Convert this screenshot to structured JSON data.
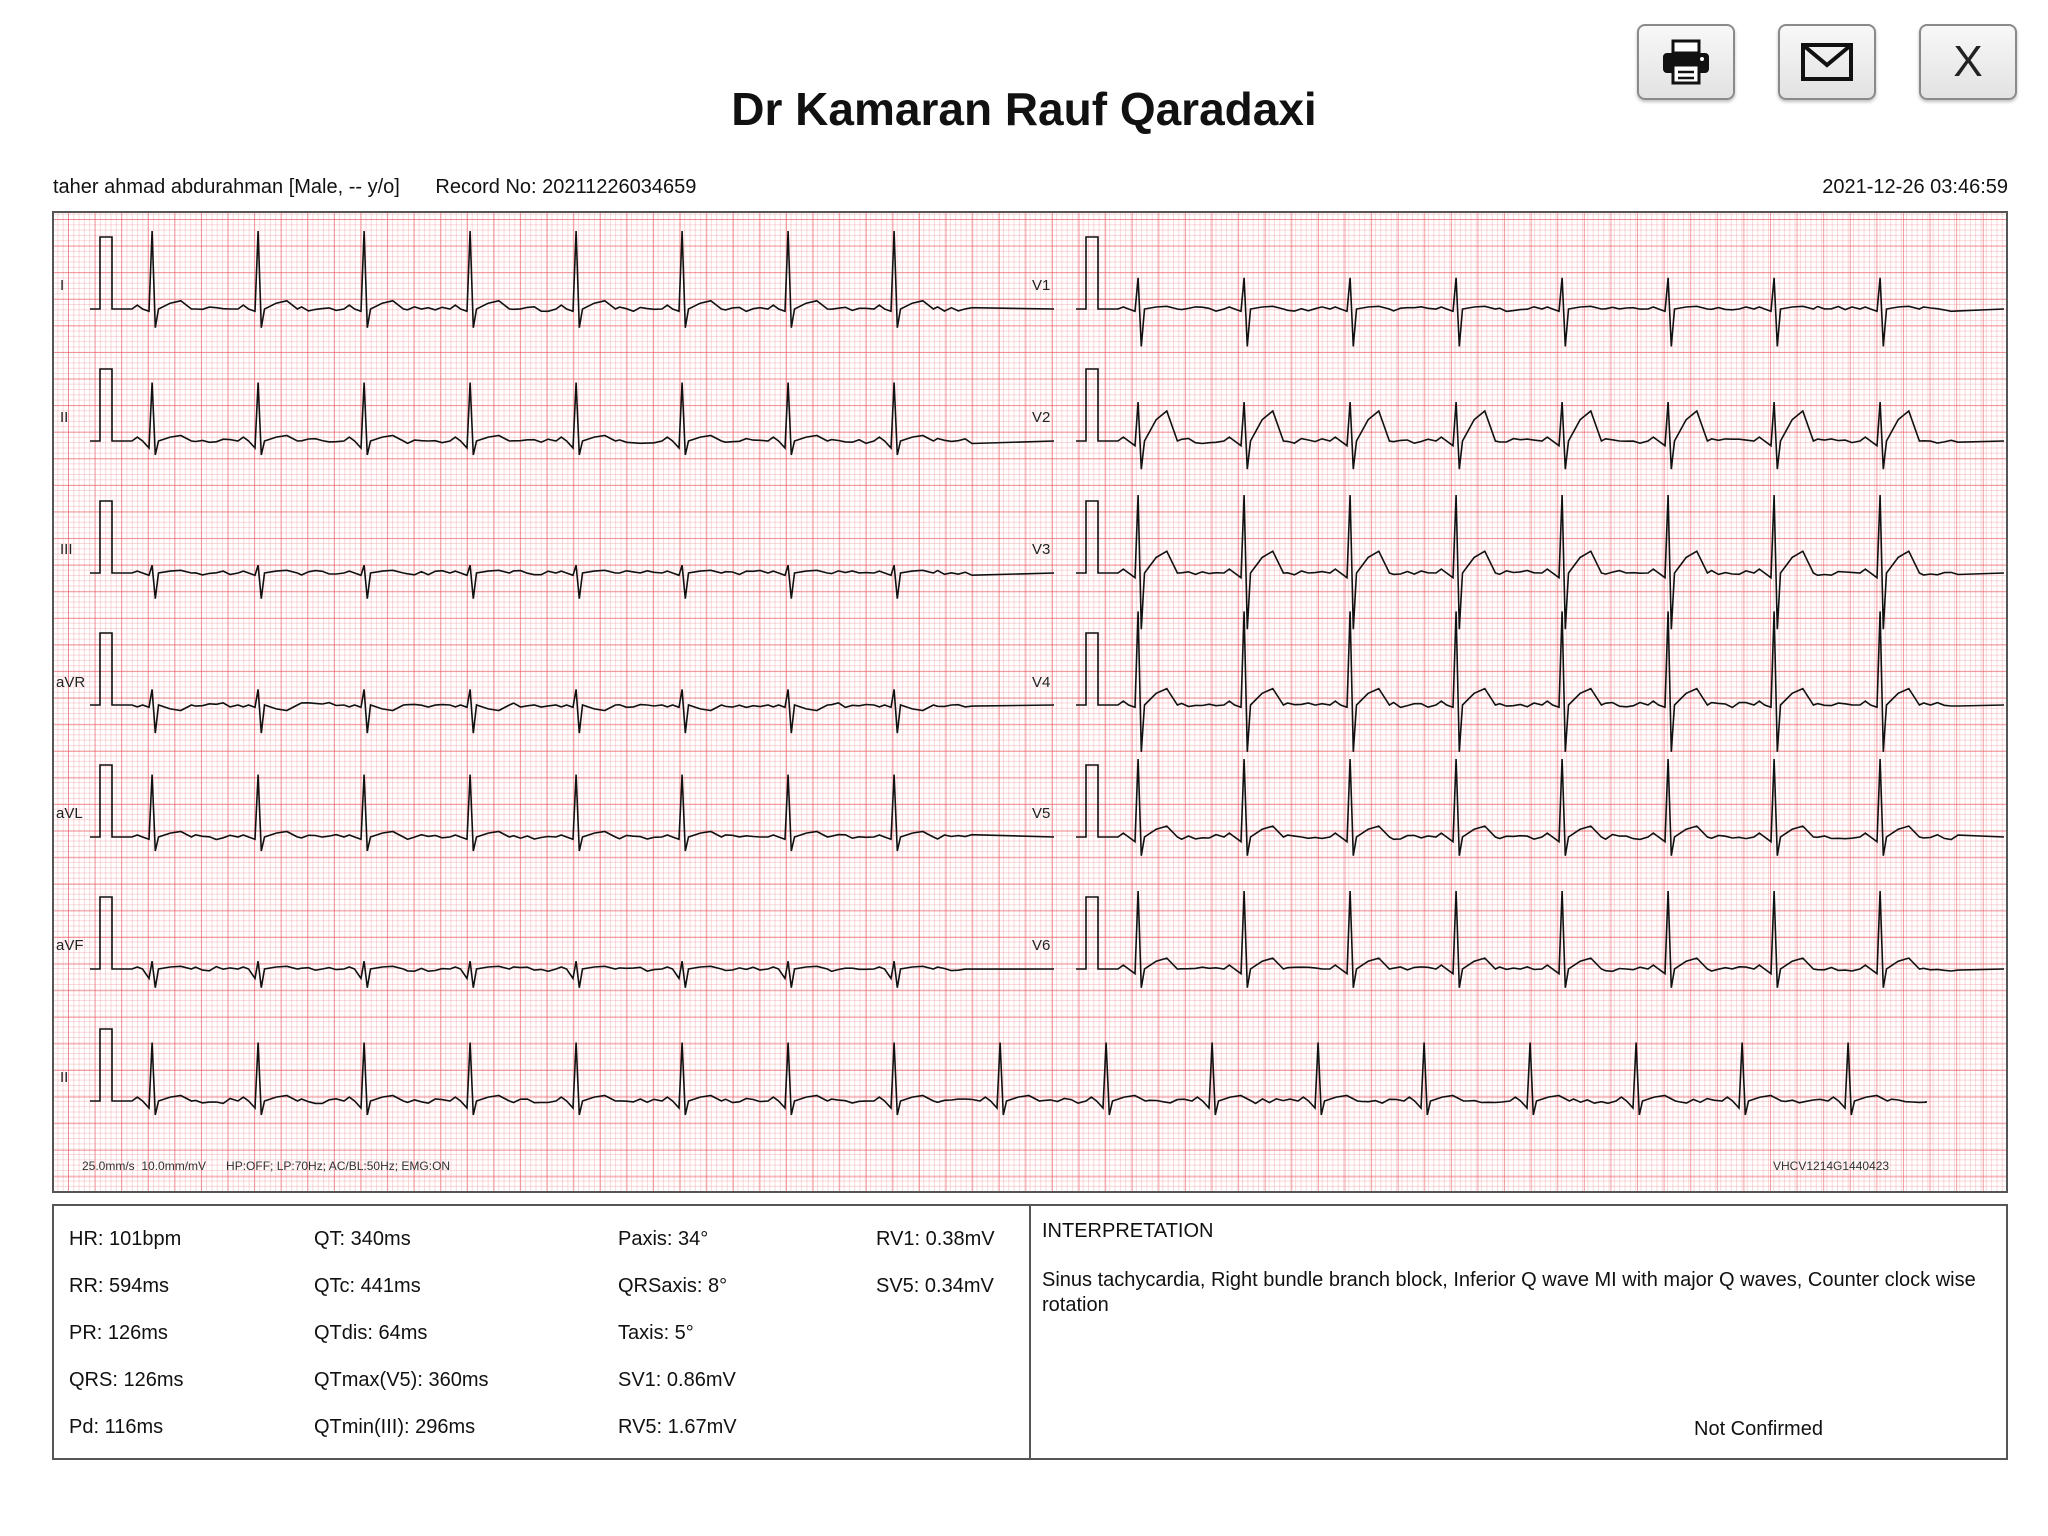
{
  "header": {
    "title": "Dr Kamaran Rauf Qaradaxi",
    "patient": "taher ahmad abdurahman [Male, -- y/o]",
    "record": "Record No: 20211226034659",
    "datetime": "2021-12-26 03:46:59"
  },
  "toolbar": {
    "print_icon": "printer-icon",
    "mail_icon": "envelope-icon",
    "close_label": "X"
  },
  "ecg": {
    "leads_left": [
      "I",
      "II",
      "III",
      "aVR",
      "aVL",
      "aVF"
    ],
    "leads_right": [
      "V1",
      "V2",
      "V3",
      "V4",
      "V5",
      "V6"
    ],
    "rhythm_lead": "II",
    "settings": "25.0mm/s  10.0mm/mV      HP:OFF; LP:70Hz; AC/BL:50Hz; EMG:ON",
    "device_id": "VHCV1214G1440423",
    "grid_color": "#e85058"
  },
  "measurements": {
    "col1": [
      "HR: 101bpm",
      "RR: 594ms",
      "PR: 126ms",
      "QRS: 126ms",
      "Pd: 116ms"
    ],
    "col2": [
      "QT: 340ms",
      "QTc: 441ms",
      "QTdis: 64ms",
      "QTmax(V5): 360ms",
      "QTmin(III): 296ms"
    ],
    "col3": [
      "Paxis: 34°",
      "QRSaxis: 8°",
      "Taxis: 5°",
      "SV1: 0.86mV",
      "RV5: 1.67mV"
    ],
    "col4": [
      "RV1: 0.38mV",
      "SV5: 0.34mV"
    ]
  },
  "interpretation": {
    "title": "INTERPRETATION",
    "text": "Sinus tachycardia, Right bundle branch block, Inferior Q wave MI with major Q waves, Counter clock wise rotation",
    "status": "Not Confirmed"
  }
}
